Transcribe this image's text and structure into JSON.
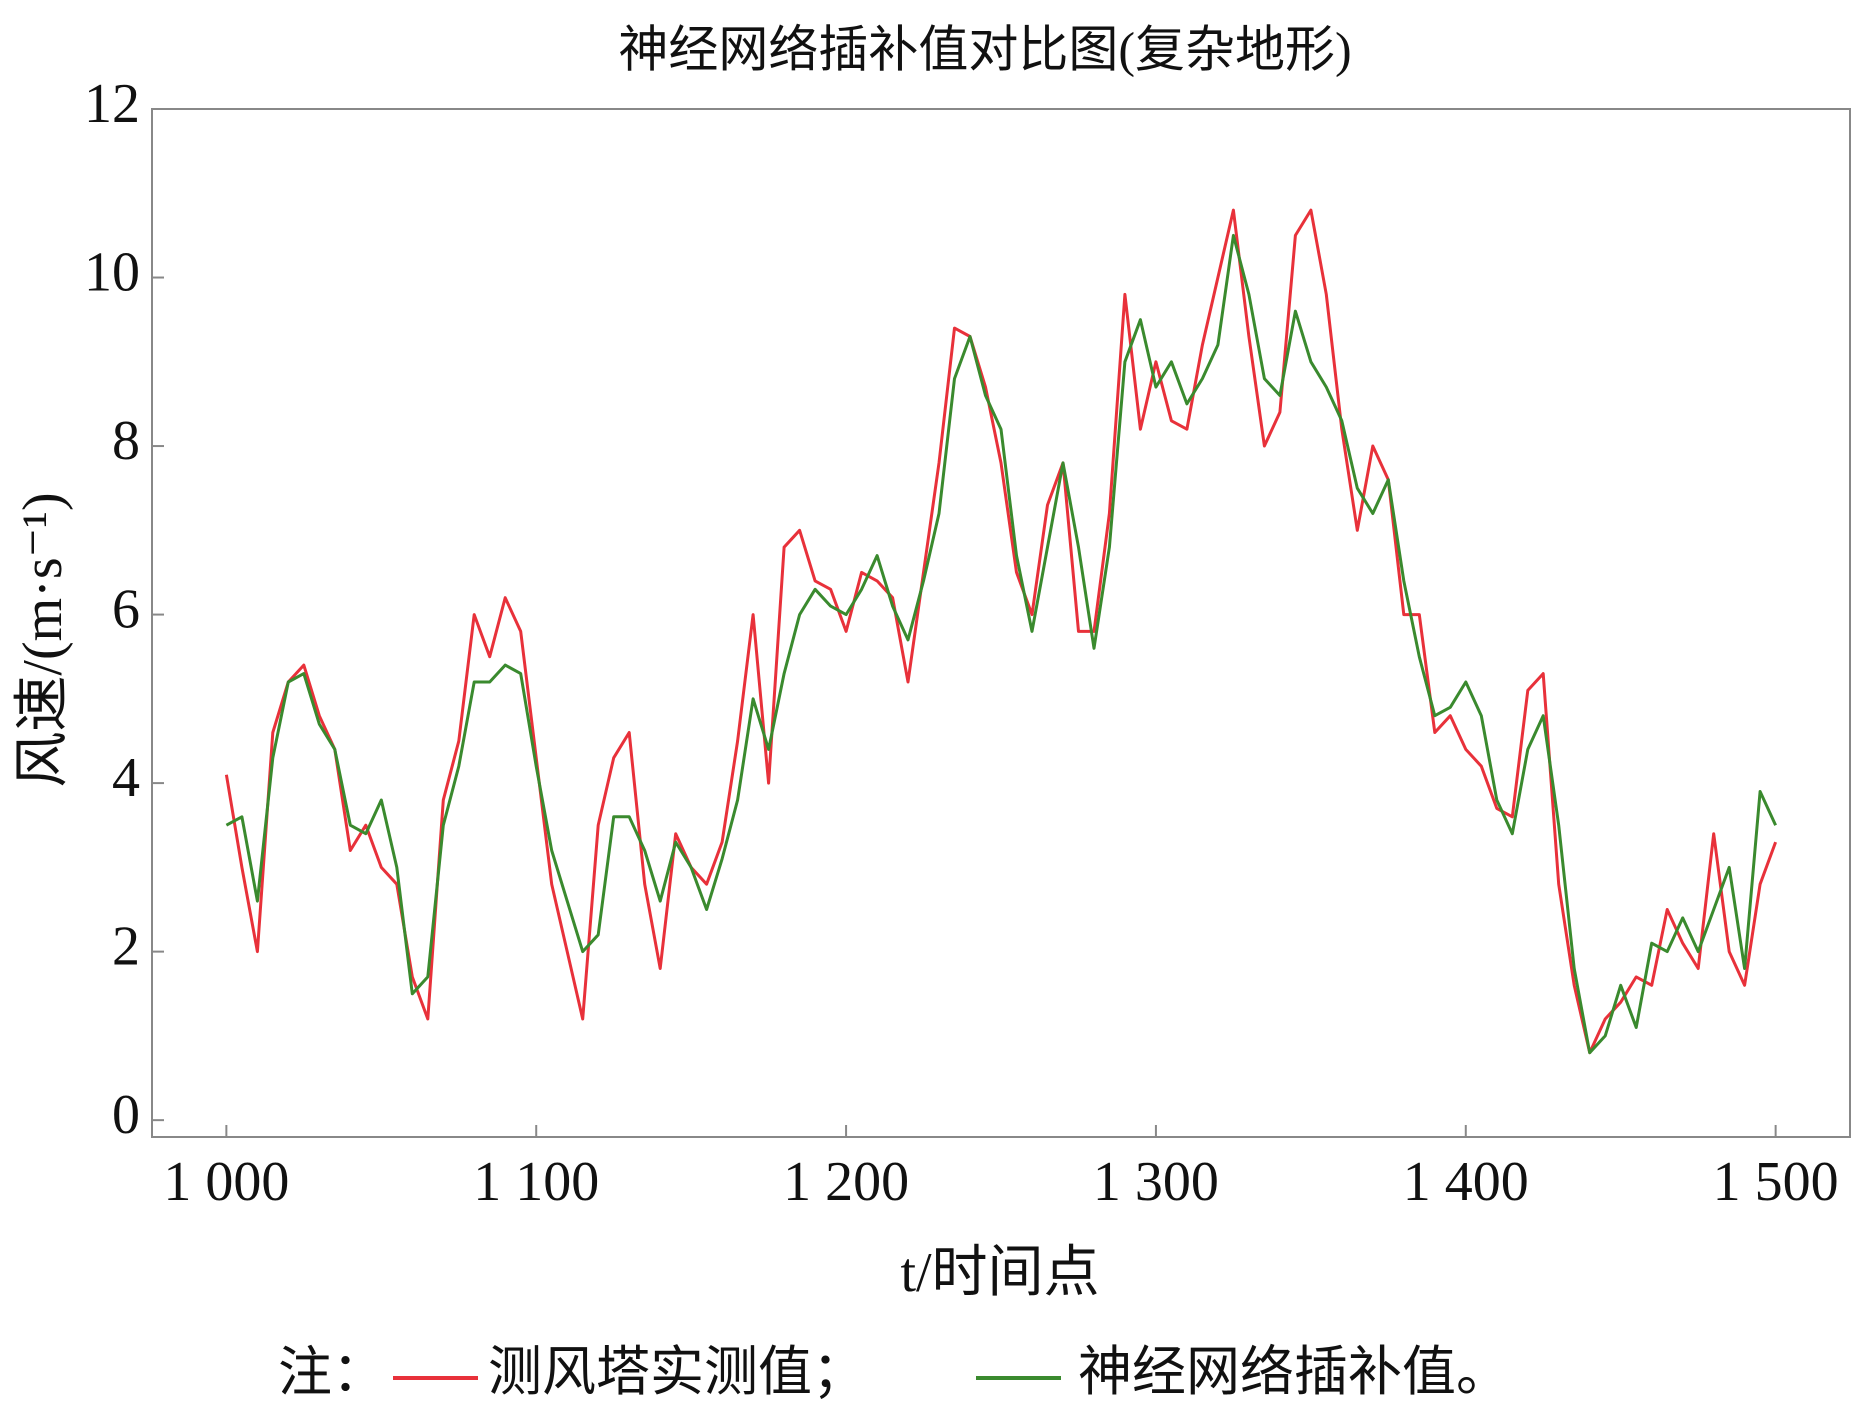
{
  "chart_data": {
    "type": "line",
    "title": "神经网络插补值对比图(复杂地形)",
    "x_label": "t/时间点",
    "y_label": "风速/(m·s⁻¹)",
    "note_label": "注：",
    "legend_separators": [
      "；",
      "。"
    ],
    "x": [
      1000,
      1005,
      1010,
      1015,
      1020,
      1025,
      1030,
      1035,
      1040,
      1045,
      1050,
      1055,
      1060,
      1065,
      1070,
      1075,
      1080,
      1085,
      1090,
      1095,
      1100,
      1105,
      1110,
      1115,
      1120,
      1125,
      1130,
      1135,
      1140,
      1145,
      1150,
      1155,
      1160,
      1165,
      1170,
      1175,
      1180,
      1185,
      1190,
      1195,
      1200,
      1205,
      1210,
      1215,
      1220,
      1225,
      1230,
      1235,
      1240,
      1245,
      1250,
      1255,
      1260,
      1265,
      1270,
      1275,
      1280,
      1285,
      1290,
      1295,
      1300,
      1305,
      1310,
      1315,
      1320,
      1325,
      1330,
      1335,
      1340,
      1345,
      1350,
      1355,
      1360,
      1365,
      1370,
      1375,
      1380,
      1385,
      1390,
      1395,
      1400,
      1405,
      1410,
      1415,
      1420,
      1425,
      1430,
      1435,
      1440,
      1445,
      1450,
      1455,
      1460,
      1465,
      1470,
      1475,
      1480,
      1485,
      1490,
      1495,
      1500
    ],
    "series": [
      {
        "name": "测风塔实测值",
        "color": "#e8313a",
        "values": [
          4.1,
          3.0,
          2.0,
          4.6,
          5.2,
          5.4,
          4.8,
          4.4,
          3.2,
          3.5,
          3.0,
          2.8,
          1.7,
          1.2,
          3.8,
          4.5,
          6.0,
          5.5,
          6.2,
          5.8,
          4.3,
          2.8,
          2.0,
          1.2,
          3.5,
          4.3,
          4.6,
          2.8,
          1.8,
          3.4,
          3.0,
          2.8,
          3.3,
          4.5,
          6.0,
          4.0,
          6.8,
          7.0,
          6.4,
          6.3,
          5.8,
          6.5,
          6.4,
          6.2,
          5.2,
          6.5,
          7.8,
          9.4,
          9.3,
          8.7,
          7.8,
          6.5,
          6.0,
          7.3,
          7.8,
          5.8,
          5.8,
          7.2,
          9.8,
          8.2,
          9.0,
          8.3,
          8.2,
          9.2,
          10.0,
          10.8,
          9.3,
          8.0,
          8.4,
          10.5,
          10.8,
          9.8,
          8.2,
          7.0,
          8.0,
          7.6,
          6.0,
          6.0,
          4.6,
          4.8,
          4.4,
          4.2,
          3.7,
          3.6,
          5.1,
          5.3,
          2.8,
          1.6,
          0.8,
          1.2,
          1.4,
          1.7,
          1.6,
          2.5,
          2.1,
          1.8,
          3.4,
          2.0,
          1.6,
          2.8,
          3.3
        ]
      },
      {
        "name": "神经网络插补值",
        "color": "#3a8a2e",
        "values": [
          3.5,
          3.6,
          2.6,
          4.3,
          5.2,
          5.3,
          4.7,
          4.4,
          3.5,
          3.4,
          3.8,
          3.0,
          1.5,
          1.7,
          3.5,
          4.2,
          5.2,
          5.2,
          5.4,
          5.3,
          4.2,
          3.2,
          2.6,
          2.0,
          2.2,
          3.6,
          3.6,
          3.2,
          2.6,
          3.3,
          3.0,
          2.5,
          3.1,
          3.8,
          5.0,
          4.4,
          5.3,
          6.0,
          6.3,
          6.1,
          6.0,
          6.3,
          6.7,
          6.1,
          5.7,
          6.4,
          7.2,
          8.8,
          9.3,
          8.6,
          8.2,
          6.7,
          5.8,
          6.8,
          7.8,
          6.8,
          5.6,
          6.8,
          9.0,
          9.5,
          8.7,
          9.0,
          8.5,
          8.8,
          9.2,
          10.5,
          9.8,
          8.8,
          8.6,
          9.6,
          9.0,
          8.7,
          8.3,
          7.5,
          7.2,
          7.6,
          6.4,
          5.5,
          4.8,
          4.9,
          5.2,
          4.8,
          3.8,
          3.4,
          4.4,
          4.8,
          3.5,
          1.8,
          0.8,
          1.0,
          1.6,
          1.1,
          2.1,
          2.0,
          2.4,
          2.0,
          2.5,
          3.0,
          1.8,
          3.9,
          3.5
        ]
      }
    ],
    "xlim": [
      976,
      1524
    ],
    "ylim": [
      -0.2,
      12
    ],
    "xticks": [
      {
        "value": 1000,
        "label": "1 000"
      },
      {
        "value": 1100,
        "label": "1 100"
      },
      {
        "value": 1200,
        "label": "1 200"
      },
      {
        "value": 1300,
        "label": "1 300"
      },
      {
        "value": 1400,
        "label": "1 400"
      },
      {
        "value": 1500,
        "label": "1 500"
      }
    ],
    "yticks": [
      0,
      2,
      4,
      6,
      8,
      10,
      12
    ],
    "grid": false
  }
}
